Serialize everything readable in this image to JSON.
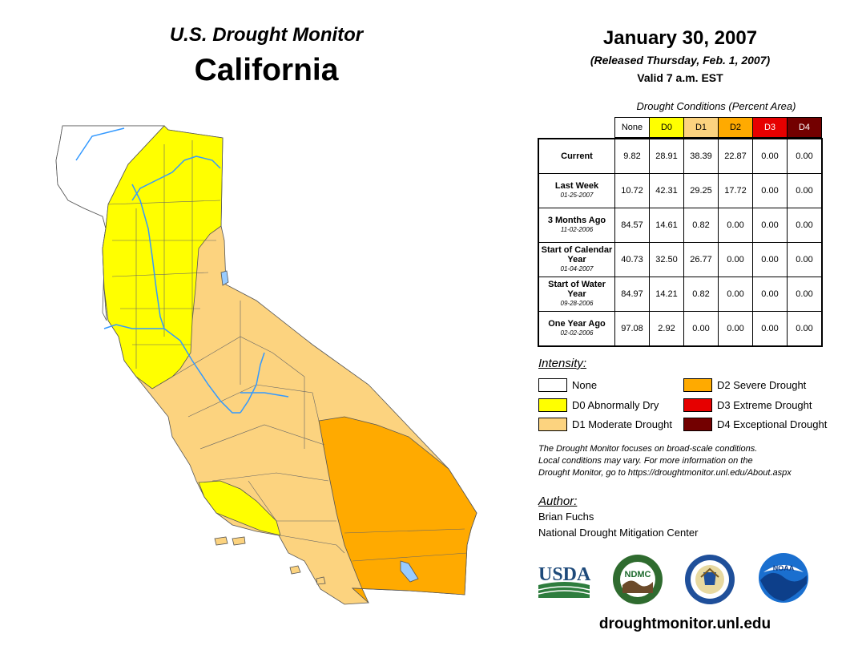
{
  "header": {
    "monitor_title": "U.S. Drought Monitor",
    "state": "California",
    "date": "January 30, 2007",
    "released": "(Released Thursday, Feb. 1, 2007)",
    "valid": "Valid 7 a.m. EST"
  },
  "table": {
    "caption": "Drought Conditions (Percent Area)",
    "columns": [
      "None",
      "D0",
      "D1",
      "D2",
      "D3",
      "D4"
    ],
    "rows": [
      {
        "label": "Current",
        "date": "",
        "values": [
          "9.82",
          "28.91",
          "38.39",
          "22.87",
          "0.00",
          "0.00"
        ]
      },
      {
        "label": "Last Week",
        "date": "01-25-2007",
        "values": [
          "10.72",
          "42.31",
          "29.25",
          "17.72",
          "0.00",
          "0.00"
        ]
      },
      {
        "label": "3 Months Ago",
        "date": "11-02-2006",
        "values": [
          "84.57",
          "14.61",
          "0.82",
          "0.00",
          "0.00",
          "0.00"
        ]
      },
      {
        "label": "Start of Calendar Year",
        "date": "01-04-2007",
        "values": [
          "40.73",
          "32.50",
          "26.77",
          "0.00",
          "0.00",
          "0.00"
        ]
      },
      {
        "label": "Start of Water Year",
        "date": "09-28-2006",
        "values": [
          "84.97",
          "14.21",
          "0.82",
          "0.00",
          "0.00",
          "0.00"
        ]
      },
      {
        "label": "One Year Ago",
        "date": "02-02-2006",
        "values": [
          "97.08",
          "2.92",
          "0.00",
          "0.00",
          "0.00",
          "0.00"
        ]
      }
    ]
  },
  "legend": {
    "title": "Intensity:",
    "items": [
      {
        "label": "None",
        "color": "#ffffff"
      },
      {
        "label": "D0 Abnormally Dry",
        "color": "#ffff00"
      },
      {
        "label": "D1 Moderate Drought",
        "color": "#fcd37f"
      },
      {
        "label": "D2 Severe Drought",
        "color": "#ffaa00"
      },
      {
        "label": "D3 Extreme Drought",
        "color": "#e60000"
      },
      {
        "label": "D4 Exceptional Drought",
        "color": "#730000"
      }
    ]
  },
  "note": {
    "line1": "The Drought Monitor focuses on broad-scale conditions.",
    "line2": "Local conditions may vary. For more information on the",
    "line3": "Drought Monitor, go to https://droughtmonitor.unl.edu/About.aspx"
  },
  "author": {
    "label": "Author:",
    "name": "Brian Fuchs",
    "org": "National Drought Mitigation Center"
  },
  "logos": {
    "usda": "USDA",
    "ndmc": "NDMC",
    "noaa": "NOAA"
  },
  "website": "droughtmonitor.unl.edu",
  "colors": {
    "none": "#ffffff",
    "d0": "#ffff00",
    "d1": "#fcd37f",
    "d2": "#ffaa00",
    "d3": "#e60000",
    "d4": "#730000",
    "water": "#99ccff",
    "river": "#3399ff"
  }
}
